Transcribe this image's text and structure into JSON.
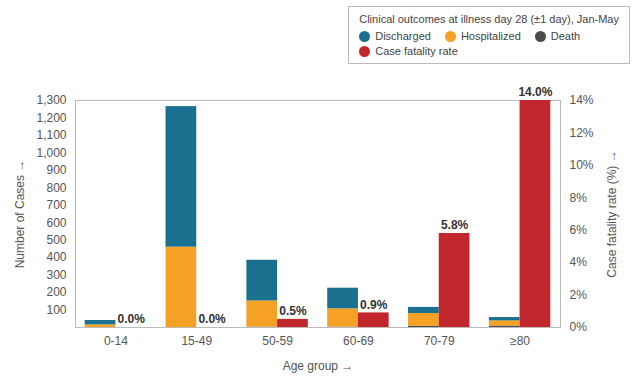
{
  "chart_data": {
    "type": "bar",
    "title": "Clinical outcomes at illness day 28 (±1 day), Jan-May",
    "x_label": "Age group",
    "y_label": "Number of Cases",
    "y2_label": "Case fatality rate (%)",
    "categories": [
      "0-14",
      "15-49",
      "50-59",
      "60-69",
      "70-79",
      "≥80"
    ],
    "stacked": true,
    "legend": "top-right",
    "data_labels": true,
    "ylim": [
      0,
      1300
    ],
    "yticks": [
      100,
      200,
      300,
      400,
      500,
      600,
      700,
      800,
      900,
      {
        "value": 1000,
        "label": "1,000"
      },
      {
        "value": 1100,
        "label": "1,100"
      },
      {
        "value": 1200,
        "label": "1,200"
      },
      {
        "value": 1300,
        "label": "1,300"
      }
    ],
    "y2lim": [
      0,
      14
    ],
    "y2ticks": [
      {
        "value": 0,
        "label": "0%"
      },
      {
        "value": 2,
        "label": "2%"
      },
      {
        "value": 4,
        "label": "4%"
      },
      {
        "value": 6,
        "label": "6%"
      },
      {
        "value": 8,
        "label": "8%"
      },
      {
        "value": 10,
        "label": "10%"
      },
      {
        "value": 12,
        "label": "12%"
      },
      {
        "value": 14,
        "label": "14%"
      }
    ],
    "series": [
      {
        "name": "Discharged",
        "color": "#1b6f8f",
        "values": [
          25,
          805,
          233,
          118,
          35,
          19
        ]
      },
      {
        "name": "Hospitalized",
        "color": "#f4a126",
        "values": [
          15,
          460,
          150,
          105,
          73,
          30
        ]
      },
      {
        "name": "Death",
        "color": "#4a4a4a",
        "values": [
          0,
          0,
          2,
          2,
          7,
          8
        ]
      },
      {
        "name": "Case fatality rate",
        "color": "#c1272d",
        "axis": "y2",
        "values": [
          0,
          0,
          0.5,
          0.9,
          5.8,
          14
        ],
        "value_labels": [
          "0.0%",
          "0.0%",
          "0.5%",
          "0.9%",
          "5.8%",
          "14.0%"
        ]
      }
    ]
  }
}
